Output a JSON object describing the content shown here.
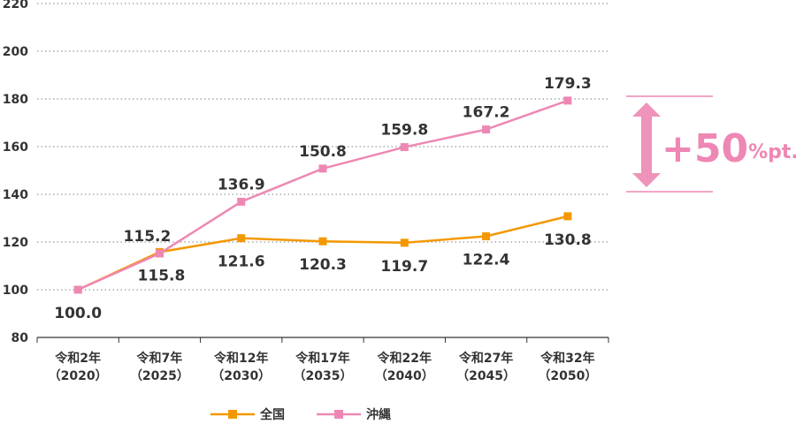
{
  "chart_data": {
    "type": "line",
    "categories": [
      [
        "令和2年",
        "（2020）"
      ],
      [
        "令和7年",
        "（2025）"
      ],
      [
        "令和12年",
        "（2030）"
      ],
      [
        "令和17年",
        "（2035）"
      ],
      [
        "令和22年",
        "（2040）"
      ],
      [
        "令和27年",
        "（2045）"
      ],
      [
        "令和32年",
        "（2050）"
      ]
    ],
    "ylim": [
      80,
      220
    ],
    "yticks": [
      80,
      100,
      120,
      140,
      160,
      180,
      200,
      220
    ],
    "grid": true,
    "legend_position": "bottom",
    "series": [
      {
        "name": "全国",
        "color": "#f39800",
        "values": [
          100.0,
          115.8,
          121.6,
          120.3,
          119.7,
          122.4,
          130.8
        ],
        "labels": [
          "",
          "115.8",
          "121.6",
          "120.3",
          "119.7",
          "122.4",
          "130.8"
        ]
      },
      {
        "name": "沖縄",
        "color": "#ee87b4",
        "values": [
          100.0,
          115.2,
          136.9,
          150.8,
          159.8,
          167.2,
          179.3
        ],
        "labels": [
          "100.0",
          "115.2",
          "136.9",
          "150.8",
          "159.8",
          "167.2",
          "179.3"
        ]
      }
    ],
    "annotation": {
      "big": "+50",
      "small": "%pt.",
      "color": "#ee87b4"
    }
  }
}
